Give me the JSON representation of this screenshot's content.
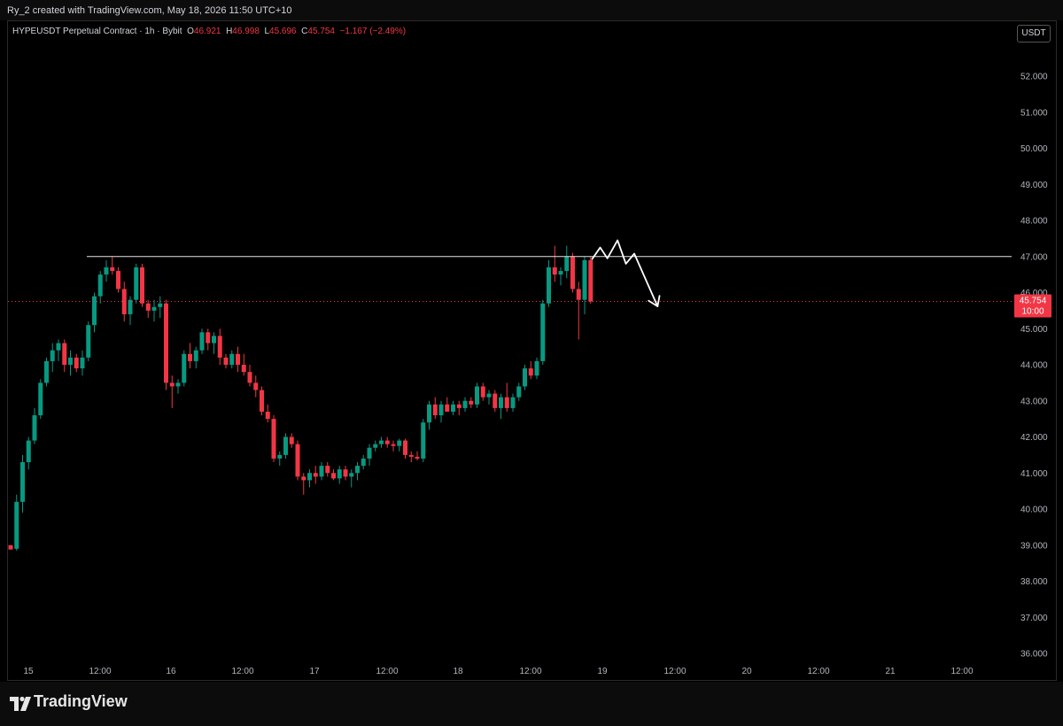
{
  "header": {
    "created_by": "Ry_2 created with TradingView.com, May 18, 2026 11:50 UTC+10"
  },
  "legend": {
    "symbol": "HYPEUSDT Perpetual Contract · 1h · Bybit",
    "open_label": "O",
    "open": "46.921",
    "high_label": "H",
    "high": "46.998",
    "low_label": "L",
    "low": "45.696",
    "close_label": "C",
    "close": "45.754",
    "change": "−1.167 (−2.49%)"
  },
  "currency_button": "USDT",
  "footer": {
    "brand": "TradingView"
  },
  "colors": {
    "up": "#089981",
    "down": "#f23645",
    "background": "#000000",
    "text": "#d1d4dc"
  },
  "chart_data": {
    "type": "candlestick",
    "y_axis": {
      "ticks": [
        "36.000",
        "37.000",
        "38.000",
        "39.000",
        "40.000",
        "41.000",
        "42.000",
        "43.000",
        "44.000",
        "45.000",
        "46.000",
        "47.000",
        "48.000",
        "49.000",
        "50.000",
        "51.000",
        "52.000"
      ],
      "range": [
        35.6,
        53.2
      ]
    },
    "x_axis": {
      "ticks": [
        "15",
        "12:00",
        "16",
        "12:00",
        "17",
        "12:00",
        "18",
        "12:00",
        "19",
        "12:00",
        "20",
        "12:00",
        "21",
        "12:00"
      ]
    },
    "horizontal_line": 47.0,
    "last_price": {
      "value": "45.754",
      "countdown": "10:00"
    },
    "candles": [
      [
        39.0,
        39.0,
        38.88,
        38.88
      ],
      [
        38.9,
        40.4,
        38.85,
        40.2
      ],
      [
        40.2,
        41.5,
        39.9,
        41.3
      ],
      [
        41.3,
        42.0,
        41.1,
        41.9
      ],
      [
        41.9,
        42.8,
        41.8,
        42.6
      ],
      [
        42.6,
        43.6,
        42.5,
        43.5
      ],
      [
        43.5,
        44.2,
        43.4,
        44.1
      ],
      [
        44.1,
        44.6,
        43.8,
        44.4
      ],
      [
        44.4,
        44.7,
        44.1,
        44.6
      ],
      [
        44.6,
        44.7,
        43.8,
        44.0
      ],
      [
        44.0,
        44.4,
        43.7,
        44.2
      ],
      [
        44.2,
        44.3,
        43.8,
        43.9
      ],
      [
        43.9,
        44.4,
        43.7,
        44.2
      ],
      [
        44.2,
        45.2,
        44.1,
        45.1
      ],
      [
        45.1,
        46.0,
        44.9,
        45.9
      ],
      [
        45.9,
        46.6,
        45.7,
        46.5
      ],
      [
        46.5,
        46.9,
        46.3,
        46.7
      ],
      [
        46.7,
        47.0,
        46.5,
        46.6
      ],
      [
        46.6,
        46.7,
        46.0,
        46.1
      ],
      [
        46.1,
        46.3,
        45.2,
        45.4
      ],
      [
        45.4,
        45.9,
        45.1,
        45.8
      ],
      [
        45.8,
        46.8,
        45.7,
        46.7
      ],
      [
        46.7,
        46.8,
        45.6,
        45.7
      ],
      [
        45.7,
        45.8,
        45.3,
        45.5
      ],
      [
        45.5,
        45.8,
        45.2,
        45.6
      ],
      [
        45.6,
        45.9,
        45.3,
        45.7
      ],
      [
        45.7,
        45.8,
        43.3,
        43.5
      ],
      [
        43.5,
        43.7,
        42.8,
        43.4
      ],
      [
        43.4,
        43.6,
        43.2,
        43.5
      ],
      [
        43.5,
        44.4,
        43.4,
        44.3
      ],
      [
        44.3,
        44.6,
        43.9,
        44.1
      ],
      [
        44.1,
        44.5,
        43.9,
        44.4
      ],
      [
        44.4,
        45.0,
        44.3,
        44.9
      ],
      [
        44.9,
        45.0,
        44.4,
        44.6
      ],
      [
        44.6,
        44.9,
        44.3,
        44.8
      ],
      [
        44.8,
        45.0,
        44.0,
        44.2
      ],
      [
        44.2,
        44.3,
        43.9,
        44.0
      ],
      [
        44.0,
        44.4,
        43.9,
        44.3
      ],
      [
        44.3,
        44.5,
        43.8,
        44.0
      ],
      [
        44.0,
        44.3,
        43.7,
        43.8
      ],
      [
        43.8,
        44.0,
        43.4,
        43.5
      ],
      [
        43.5,
        43.7,
        43.1,
        43.3
      ],
      [
        43.3,
        43.4,
        42.6,
        42.7
      ],
      [
        42.7,
        42.9,
        42.4,
        42.5
      ],
      [
        42.5,
        42.6,
        41.3,
        41.4
      ],
      [
        41.4,
        41.6,
        41.2,
        41.5
      ],
      [
        41.5,
        42.1,
        41.4,
        42.0
      ],
      [
        42.0,
        42.1,
        41.7,
        41.8
      ],
      [
        41.8,
        41.9,
        40.8,
        40.9
      ],
      [
        40.9,
        41.0,
        40.4,
        40.8
      ],
      [
        40.8,
        41.1,
        40.6,
        41.0
      ],
      [
        41.0,
        41.2,
        40.7,
        40.9
      ],
      [
        40.9,
        41.3,
        40.8,
        41.2
      ],
      [
        41.2,
        41.3,
        40.9,
        41.0
      ],
      [
        41.0,
        41.1,
        40.8,
        40.85
      ],
      [
        40.85,
        41.2,
        40.7,
        41.1
      ],
      [
        41.1,
        41.2,
        40.8,
        40.9
      ],
      [
        40.9,
        41.1,
        40.6,
        41.0
      ],
      [
        41.0,
        41.3,
        40.8,
        41.2
      ],
      [
        41.2,
        41.5,
        41.1,
        41.4
      ],
      [
        41.4,
        41.8,
        41.2,
        41.7
      ],
      [
        41.7,
        41.9,
        41.6,
        41.8
      ],
      [
        41.8,
        42.0,
        41.7,
        41.9
      ],
      [
        41.9,
        42.0,
        41.7,
        41.8
      ],
      [
        41.8,
        41.9,
        41.6,
        41.75
      ],
      [
        41.75,
        41.95,
        41.6,
        41.9
      ],
      [
        41.9,
        41.95,
        41.4,
        41.5
      ],
      [
        41.5,
        41.6,
        41.3,
        41.45
      ],
      [
        41.45,
        41.6,
        41.35,
        41.4
      ],
      [
        41.4,
        42.5,
        41.3,
        42.4
      ],
      [
        42.4,
        43.0,
        42.2,
        42.9
      ],
      [
        42.9,
        43.1,
        42.5,
        42.6
      ],
      [
        42.6,
        43.0,
        42.4,
        42.9
      ],
      [
        42.9,
        43.1,
        42.8,
        42.7
      ],
      [
        42.7,
        43.0,
        42.6,
        42.9
      ],
      [
        42.9,
        43.0,
        42.6,
        42.8
      ],
      [
        42.8,
        43.1,
        42.7,
        43.0
      ],
      [
        43.0,
        43.1,
        42.8,
        42.9
      ],
      [
        42.9,
        43.5,
        42.8,
        43.4
      ],
      [
        43.4,
        43.5,
        43.0,
        43.1
      ],
      [
        43.1,
        43.3,
        42.9,
        43.2
      ],
      [
        43.2,
        43.3,
        42.7,
        42.8
      ],
      [
        42.8,
        43.2,
        42.5,
        43.1
      ],
      [
        43.1,
        43.5,
        42.7,
        42.8
      ],
      [
        42.8,
        43.2,
        42.7,
        43.1
      ],
      [
        43.1,
        43.5,
        43.0,
        43.4
      ],
      [
        43.4,
        44.0,
        43.3,
        43.9
      ],
      [
        43.9,
        44.1,
        43.6,
        43.7
      ],
      [
        43.7,
        44.2,
        43.6,
        44.1
      ],
      [
        44.1,
        45.8,
        44.0,
        45.7
      ],
      [
        45.7,
        46.9,
        45.6,
        46.7
      ],
      [
        46.7,
        47.3,
        46.3,
        46.5
      ],
      [
        46.5,
        46.7,
        46.2,
        46.6
      ],
      [
        46.6,
        47.3,
        46.4,
        47.0
      ],
      [
        47.0,
        47.1,
        46.0,
        46.1
      ],
      [
        46.1,
        46.3,
        44.7,
        45.8
      ],
      [
        45.8,
        47.0,
        45.4,
        46.9
      ],
      [
        46.9,
        46.998,
        45.696,
        45.754
      ]
    ],
    "projection_path": [
      [
        0.25,
        46.93
      ],
      [
        1.6,
        47.25
      ],
      [
        2.8,
        46.95
      ],
      [
        4.5,
        47.45
      ],
      [
        5.9,
        46.8
      ],
      [
        7.3,
        47.08
      ],
      [
        11.2,
        45.62
      ]
    ],
    "projection_arrow_length": 1.2
  }
}
